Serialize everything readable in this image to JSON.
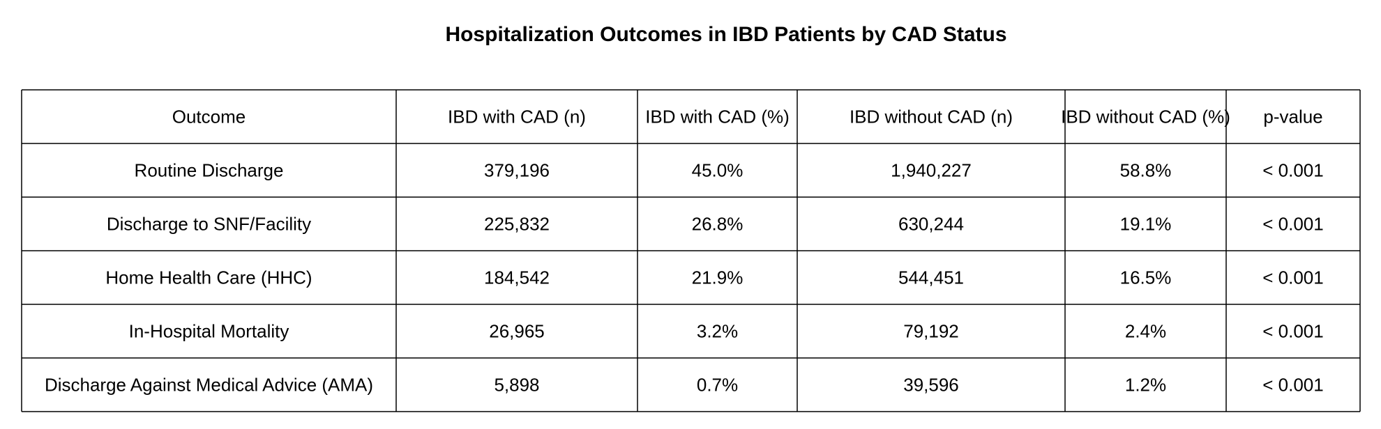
{
  "chart_data": {
    "type": "table",
    "title": "Hospitalization Outcomes in IBD Patients by CAD Status",
    "columns": [
      "Outcome",
      "IBD with CAD (n)",
      "IBD with CAD (%)",
      "IBD without CAD (n)",
      "IBD without CAD (%)",
      "p-value"
    ],
    "rows": [
      [
        "Routine Discharge",
        "379,196",
        "45.0%",
        "1,940,227",
        "58.8%",
        "< 0.001"
      ],
      [
        "Discharge to SNF/Facility",
        "225,832",
        "26.8%",
        "630,244",
        "19.1%",
        "< 0.001"
      ],
      [
        "Home Health Care (HHC)",
        "184,542",
        "21.9%",
        "544,451",
        "16.5%",
        "< 0.001"
      ],
      [
        "In-Hospital Mortality",
        "26,965",
        "3.2%",
        "79,192",
        "2.4%",
        "< 0.001"
      ],
      [
        "Discharge Against Medical Advice (AMA)",
        "5,898",
        "0.7%",
        "39,596",
        "1.2%",
        "< 0.001"
      ]
    ]
  }
}
